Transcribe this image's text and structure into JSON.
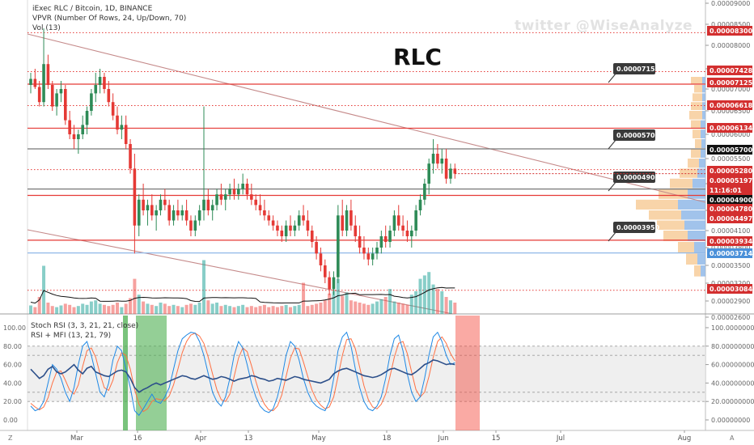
{
  "header": {
    "symbol_line": "iExec RLC / Bitcoin, 1D, BINANCE",
    "vpvr_line": "VPVR (Number Of Rows, 24, Up/Down, 70)",
    "vol_line": "Vol (13)",
    "watermark": "twitter @WiseAnalyze",
    "big_title": "RLC"
  },
  "indicator_pane": {
    "line1": "Stoch RSI (3, 3, 21, 21, close)",
    "line2": "RSI + MFI (13, 21, 79)"
  },
  "colors": {
    "up": "#26a69a",
    "down": "#ef5350",
    "up_candle": "#2e8b57",
    "down_candle": "#e53935",
    "red_label": "#d32f2f",
    "black_label": "#111111",
    "level_red": "#e53935",
    "level_gray": "#777777",
    "level_blue": "#90b8e8",
    "trend": "#c58a8a",
    "rsi_blue": "#1e88e5",
    "rsi_orange": "#ff7043",
    "mfi_navy": "#2c4f8a",
    "green_zone": "#4caf50",
    "red_zone": "#f44336"
  },
  "chart_data": {
    "type": "candlestick",
    "y_axis_ticks": [
      "0.00009000",
      "0.00008500",
      "0.00008000",
      "0.00007500",
      "0.00007000",
      "0.00006500",
      "0.00006000",
      "0.00005500",
      "0.00005000",
      "0.00004500",
      "0.00004100",
      "0.00003800",
      "0.00003500",
      "0.00003200",
      "0.00002900",
      "0.00002600"
    ],
    "x_axis_ticks": [
      "Mar",
      "16",
      "Apr",
      "13",
      "May",
      "18",
      "Jun",
      "15",
      "Jul",
      "Aug"
    ],
    "price_labels": [
      {
        "value": "0.00008300",
        "style": "red"
      },
      {
        "value": "0.00007428",
        "style": "red"
      },
      {
        "value": "0.00007125",
        "style": "red"
      },
      {
        "value": "0.00006618",
        "style": "red"
      },
      {
        "value": "0.00006134",
        "style": "red"
      },
      {
        "value": "0.00005700",
        "style": "black"
      },
      {
        "value": "0.00005280",
        "style": "red"
      },
      {
        "value": "0.00005197",
        "style": "red"
      },
      {
        "value": "11:16:01",
        "style": "red"
      },
      {
        "value": "0.00004900",
        "style": "black"
      },
      {
        "value": "0.00004780",
        "style": "red"
      },
      {
        "value": "0.00004497",
        "style": "red"
      },
      {
        "value": "0.00003934",
        "style": "red"
      },
      {
        "value": "0.00003714",
        "style": "blue"
      },
      {
        "value": "0.00003084",
        "style": "red"
      }
    ],
    "callouts": [
      "0.00007150",
      "0.00005700",
      "0.00004900",
      "0.00003950"
    ],
    "indicator_y_ticks": [
      "100.00",
      "80.00",
      "60.00",
      "40.00",
      "20.00",
      "0.00"
    ],
    "indicator_right_ticks": [
      "100.00000000",
      "80.00000000",
      "60.00000000",
      "40.00000000",
      "20.00000000",
      "0.00000000"
    ],
    "corner_labels": {
      "left": "Z",
      "right": "A"
    },
    "candles": [
      [
        7.1e-05,
        7.4e-05,
        6.9e-05,
        7.25e-05
      ],
      [
        7.25e-05,
        7.5e-05,
        7e-05,
        7.05e-05
      ],
      [
        7.05e-05,
        7.2e-05,
        6.6e-05,
        6.7e-05
      ],
      [
        6.7e-05,
        8.4e-05,
        6.6e-05,
        7.6e-05
      ],
      [
        7.6e-05,
        7.8e-05,
        7e-05,
        7.1e-05
      ],
      [
        7.1e-05,
        7.2e-05,
        6.5e-05,
        6.6e-05
      ],
      [
        6.6e-05,
        7e-05,
        6.4e-05,
        6.9e-05
      ],
      [
        6.9e-05,
        7.2e-05,
        6.7e-05,
        7e-05
      ],
      [
        7e-05,
        7.1e-05,
        6.2e-05,
        6.3e-05
      ],
      [
        6.3e-05,
        6.5e-05,
        5.9e-05,
        6e-05
      ],
      [
        6e-05,
        6.2e-05,
        5.7e-05,
        5.9e-05
      ],
      [
        5.9e-05,
        6.1e-05,
        5.6e-05,
        6e-05
      ],
      [
        6e-05,
        6.4e-05,
        5.9e-05,
        6.2e-05
      ],
      [
        6.2e-05,
        6.6e-05,
        6e-05,
        6.5e-05
      ],
      [
        6.5e-05,
        7e-05,
        6.4e-05,
        6.9e-05
      ],
      [
        6.9e-05,
        7.4e-05,
        6.7e-05,
        7.1e-05
      ],
      [
        7.1e-05,
        7.5e-05,
        6.9e-05,
        7.3e-05
      ],
      [
        7.3e-05,
        7.4e-05,
        6.9e-05,
        7e-05
      ],
      [
        7e-05,
        7.2e-05,
        6.6e-05,
        6.7e-05
      ],
      [
        6.7e-05,
        6.9e-05,
        6.3e-05,
        6.4e-05
      ],
      [
        6.4e-05,
        6.6e-05,
        6e-05,
        6.1e-05
      ],
      [
        6.1e-05,
        6.4e-05,
        5.9e-05,
        6.2e-05
      ],
      [
        6.2e-05,
        6.4e-05,
        5.7e-05,
        5.8e-05
      ],
      [
        5.8e-05,
        5.9e-05,
        5.2e-05,
        5.3e-05
      ],
      [
        5.3e-05,
        5.6e-05,
        3.7e-05,
        4.2e-05
      ],
      [
        4.2e-05,
        4.8e-05,
        4e-05,
        4.7e-05
      ],
      [
        4.7e-05,
        5e-05,
        4.4e-05,
        4.5e-05
      ],
      [
        4.5e-05,
        4.7e-05,
        4.2e-05,
        4.6e-05
      ],
      [
        4.6e-05,
        4.8e-05,
        4.3e-05,
        4.4e-05
      ],
      [
        4.4e-05,
        4.6e-05,
        4.1e-05,
        4.5e-05
      ],
      [
        4.5e-05,
        4.8e-05,
        4.4e-05,
        4.7e-05
      ],
      [
        4.7e-05,
        4.9e-05,
        4.5e-05,
        4.6e-05
      ],
      [
        4.6e-05,
        4.7e-05,
        4.2e-05,
        4.3e-05
      ],
      [
        4.3e-05,
        4.6e-05,
        4.2e-05,
        4.5e-05
      ],
      [
        4.5e-05,
        4.7e-05,
        4.3e-05,
        4.4e-05
      ],
      [
        4.4e-05,
        4.6e-05,
        4.3e-05,
        4.5e-05
      ],
      [
        4.5e-05,
        4.7e-05,
        4.2e-05,
        4.3e-05
      ],
      [
        4.3e-05,
        4.4e-05,
        4e-05,
        4.1e-05
      ],
      [
        4.1e-05,
        4.4e-05,
        4e-05,
        4.3e-05
      ],
      [
        4.3e-05,
        4.6e-05,
        4.2e-05,
        4.5e-05
      ],
      [
        4.5e-05,
        6.6e-05,
        4.3e-05,
        4.7e-05
      ],
      [
        4.7e-05,
        4.9e-05,
        4.4e-05,
        4.5e-05
      ],
      [
        4.5e-05,
        4.7e-05,
        4.3e-05,
        4.6e-05
      ],
      [
        4.6e-05,
        4.9e-05,
        4.5e-05,
        4.8e-05
      ],
      [
        4.8e-05,
        5e-05,
        4.6e-05,
        4.7e-05
      ],
      [
        4.7e-05,
        4.9e-05,
        4.5e-05,
        4.8e-05
      ],
      [
        4.8e-05,
        5e-05,
        4.7e-05,
        4.9e-05
      ],
      [
        4.9e-05,
        5.1e-05,
        4.7e-05,
        4.8e-05
      ],
      [
        4.8e-05,
        5e-05,
        4.7e-05,
        4.9e-05
      ],
      [
        4.9e-05,
        5.2e-05,
        4.8e-05,
        5e-05
      ],
      [
        5e-05,
        5.1e-05,
        4.7e-05,
        4.8e-05
      ],
      [
        4.8e-05,
        5e-05,
        4.6e-05,
        4.7e-05
      ],
      [
        4.7e-05,
        4.8e-05,
        4.5e-05,
        4.6e-05
      ],
      [
        4.6e-05,
        4.8e-05,
        4.4e-05,
        4.5e-05
      ],
      [
        4.5e-05,
        4.7e-05,
        4.3e-05,
        4.4e-05
      ],
      [
        4.4e-05,
        4.5e-05,
        4.2e-05,
        4.3e-05
      ],
      [
        4.3e-05,
        4.4e-05,
        4.1e-05,
        4.2e-05
      ],
      [
        4.2e-05,
        4.3e-05,
        4e-05,
        4.1e-05
      ],
      [
        4.1e-05,
        4.2e-05,
        3.9e-05,
        4e-05
      ],
      [
        4e-05,
        4.3e-05,
        3.9e-05,
        4.2e-05
      ],
      [
        4.2e-05,
        4.4e-05,
        4e-05,
        4.1e-05
      ],
      [
        4.1e-05,
        4.3e-05,
        4e-05,
        4.2e-05
      ],
      [
        4.2e-05,
        4.5e-05,
        4.1e-05,
        4.4e-05
      ],
      [
        4.4e-05,
        4.6e-05,
        4.2e-05,
        4.3e-05
      ],
      [
        4.3e-05,
        4.5e-05,
        4e-05,
        4.1e-05
      ],
      [
        4.1e-05,
        4.2e-05,
        3.8e-05,
        3.9e-05
      ],
      [
        3.9e-05,
        4e-05,
        3.6e-05,
        3.7e-05
      ],
      [
        3.7e-05,
        3.8e-05,
        3.4e-05,
        3.5e-05
      ],
      [
        3.5e-05,
        3.6e-05,
        3.2e-05,
        3.3e-05
      ],
      [
        3.3e-05,
        3.4e-05,
        3e-05,
        3.1e-05
      ],
      [
        3.1e-05,
        3.4e-05,
        3e-05,
        3.3e-05
      ],
      [
        3.3e-05,
        4.6e-05,
        3.2e-05,
        4.4e-05
      ],
      [
        4.4e-05,
        4.7e-05,
        4e-05,
        4.1e-05
      ],
      [
        4.1e-05,
        4.6e-05,
        4e-05,
        4.5e-05
      ],
      [
        4.5e-05,
        4.7e-05,
        4.1e-05,
        4.2e-05
      ],
      [
        4.2e-05,
        4.4e-05,
        3.9e-05,
        4e-05
      ],
      [
        4e-05,
        4.2e-05,
        3.7e-05,
        3.8e-05
      ],
      [
        3.8e-05,
        4e-05,
        3.6e-05,
        3.7e-05
      ],
      [
        3.7e-05,
        3.8e-05,
        3.5e-05,
        3.6e-05
      ],
      [
        3.6e-05,
        3.8e-05,
        3.5e-05,
        3.7e-05
      ],
      [
        3.7e-05,
        3.9e-05,
        3.6e-05,
        3.8e-05
      ],
      [
        3.8e-05,
        4.1e-05,
        3.7e-05,
        4e-05
      ],
      [
        4e-05,
        4.2e-05,
        3.8e-05,
        3.9e-05
      ],
      [
        3.9e-05,
        4.2e-05,
        3.8e-05,
        4.1e-05
      ],
      [
        4.1e-05,
        4.5e-05,
        4e-05,
        4.4e-05
      ],
      [
        4.4e-05,
        4.6e-05,
        4.1e-05,
        4.2e-05
      ],
      [
        4.2e-05,
        4.4e-05,
        4e-05,
        4.1e-05
      ],
      [
        4.1e-05,
        4.3e-05,
        3.9e-05,
        4e-05
      ],
      [
        4e-05,
        4.2e-05,
        3.8e-05,
        4.1e-05
      ],
      [
        4.1e-05,
        4.6e-05,
        4e-05,
        4.5e-05
      ],
      [
        4.5e-05,
        4.8e-05,
        4.4e-05,
        4.7e-05
      ],
      [
        4.7e-05,
        5.1e-05,
        4.6e-05,
        5e-05
      ],
      [
        5e-05,
        5.5e-05,
        4.8e-05,
        5.4e-05
      ],
      [
        5.4e-05,
        5.9e-05,
        5.2e-05,
        5.6e-05
      ],
      [
        5.6e-05,
        5.8e-05,
        5.3e-05,
        5.4e-05
      ],
      [
        5.4e-05,
        5.7e-05,
        5.2e-05,
        5.5e-05
      ],
      [
        5.5e-05,
        5.7e-05,
        5e-05,
        5.1e-05
      ],
      [
        5.1e-05,
        5.4e-05,
        5e-05,
        5.3e-05
      ],
      [
        5.3e-05,
        5.4e-05,
        5.1e-05,
        5.2e-05
      ]
    ],
    "volumes": [
      0.15,
      0.12,
      0.3,
      0.85,
      0.2,
      0.14,
      0.12,
      0.15,
      0.18,
      0.16,
      0.12,
      0.14,
      0.18,
      0.16,
      0.22,
      0.24,
      0.18,
      0.16,
      0.14,
      0.16,
      0.2,
      0.12,
      0.18,
      0.28,
      0.62,
      0.34,
      0.22,
      0.18,
      0.16,
      0.14,
      0.2,
      0.18,
      0.14,
      0.16,
      0.14,
      0.12,
      0.16,
      0.18,
      0.16,
      0.2,
      0.95,
      0.24,
      0.18,
      0.2,
      0.14,
      0.16,
      0.14,
      0.12,
      0.14,
      0.16,
      0.12,
      0.14,
      0.12,
      0.14,
      0.16,
      0.12,
      0.14,
      0.12,
      0.14,
      0.16,
      0.12,
      0.14,
      0.16,
      0.55,
      0.14,
      0.16,
      0.18,
      0.2,
      0.24,
      0.36,
      0.4,
      0.62,
      0.32,
      0.38,
      0.24,
      0.22,
      0.2,
      0.18,
      0.16,
      0.18,
      0.22,
      0.26,
      0.3,
      0.44,
      0.22,
      0.2,
      0.18,
      0.16,
      0.34,
      0.4,
      0.62,
      0.68,
      0.74,
      0.52,
      0.44,
      0.4,
      0.3,
      0.24,
      0.2
    ],
    "stoch_k": [
      15,
      10,
      12,
      20,
      40,
      60,
      55,
      45,
      30,
      20,
      35,
      60,
      80,
      85,
      70,
      50,
      30,
      25,
      40,
      65,
      80,
      75,
      55,
      35,
      10,
      5,
      12,
      20,
      28,
      20,
      18,
      25,
      35,
      55,
      75,
      88,
      92,
      95,
      94,
      85,
      70,
      50,
      30,
      20,
      15,
      25,
      45,
      70,
      85,
      78,
      60,
      40,
      25,
      15,
      10,
      8,
      12,
      25,
      45,
      70,
      85,
      80,
      65,
      45,
      30,
      20,
      15,
      12,
      10,
      20,
      45,
      75,
      90,
      95,
      80,
      55,
      35,
      20,
      12,
      10,
      15,
      25,
      45,
      70,
      88,
      92,
      75,
      50,
      30,
      20,
      25,
      45,
      70,
      90,
      95,
      85,
      70,
      60,
      62
    ],
    "stoch_d": [
      18,
      14,
      11,
      14,
      24,
      40,
      52,
      53,
      43,
      32,
      28,
      38,
      58,
      75,
      78,
      68,
      50,
      35,
      32,
      43,
      62,
      73,
      70,
      55,
      33,
      17,
      9,
      12,
      20,
      23,
      22,
      21,
      26,
      38,
      55,
      73,
      85,
      92,
      94,
      91,
      83,
      68,
      50,
      33,
      22,
      20,
      28,
      47,
      67,
      78,
      74,
      59,
      42,
      27,
      17,
      11,
      10,
      15,
      27,
      47,
      67,
      78,
      77,
      63,
      47,
      32,
      22,
      16,
      12,
      14,
      25,
      47,
      70,
      87,
      88,
      77,
      57,
      37,
      22,
      14,
      12,
      17,
      28,
      47,
      68,
      83,
      85,
      72,
      52,
      33,
      25,
      30,
      47,
      68,
      85,
      90,
      83,
      72,
      64
    ],
    "mfi": [
      55,
      50,
      45,
      48,
      55,
      58,
      52,
      50,
      52,
      56,
      60,
      54,
      50,
      56,
      58,
      52,
      50,
      48,
      47,
      50,
      53,
      54,
      52,
      45,
      35,
      30,
      33,
      35,
      38,
      40,
      38,
      40,
      42,
      44,
      46,
      48,
      47,
      45,
      44,
      46,
      48,
      46,
      44,
      45,
      47,
      46,
      44,
      42,
      44,
      45,
      46,
      48,
      47,
      45,
      44,
      42,
      43,
      45,
      44,
      43,
      45,
      47,
      46,
      44,
      43,
      42,
      41,
      40,
      42,
      44,
      50,
      53,
      55,
      56,
      54,
      52,
      50,
      48,
      47,
      46,
      47,
      49,
      52,
      55,
      56,
      54,
      52,
      50,
      49,
      52,
      56,
      60,
      62,
      65,
      64,
      62,
      60,
      61,
      60
    ]
  }
}
